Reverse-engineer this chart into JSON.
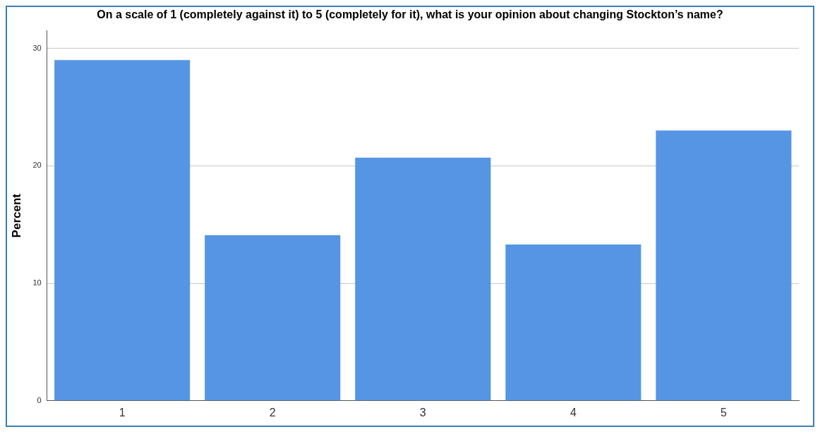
{
  "chart_data": {
    "type": "bar",
    "title": "On a scale of 1 (completely against it) to 5 (completely for it), what is your opinion about changing Stockton’s name?",
    "ylabel": "Percent",
    "categories": [
      "1",
      "2",
      "3",
      "4",
      "5"
    ],
    "values": [
      29.0,
      14.1,
      20.7,
      13.3,
      23.0
    ],
    "color": "#5595e3",
    "ylim": [
      0,
      31.5
    ],
    "yticks": [
      0,
      10,
      20,
      30
    ],
    "grid": "y",
    "legend": false
  }
}
